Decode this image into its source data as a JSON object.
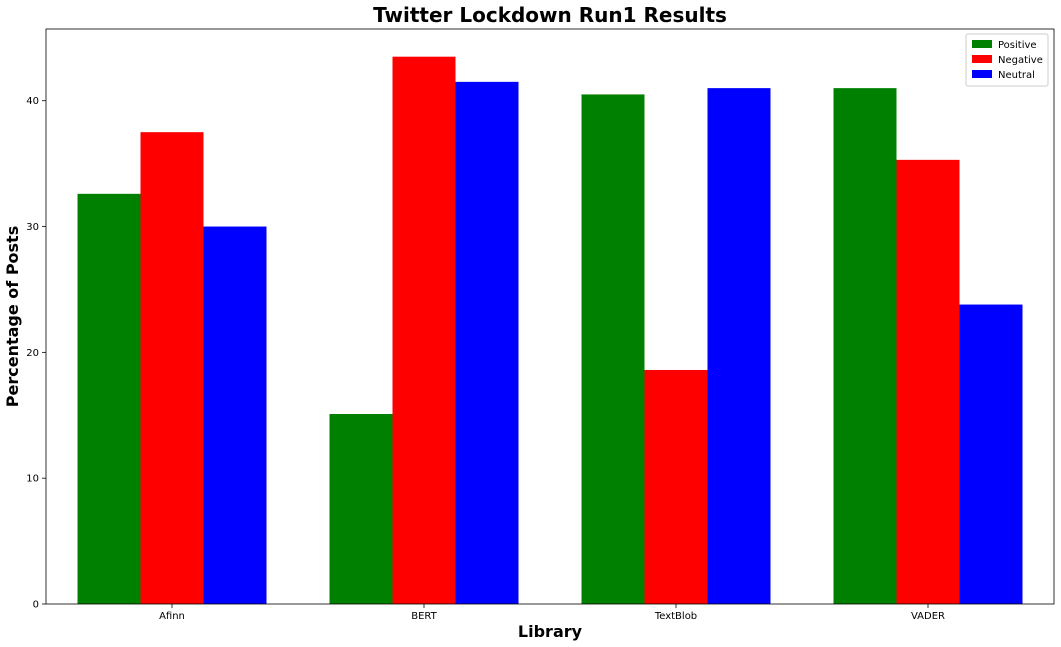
{
  "chart_data": {
    "type": "bar",
    "title": "Twitter Lockdown Run1 Results",
    "xlabel": "Library",
    "ylabel": "Percentage of Posts",
    "categories": [
      "Afinn",
      "BERT",
      "TextBlob",
      "VADER"
    ],
    "series": [
      {
        "name": "Positive",
        "color": "#008000",
        "values": [
          32.6,
          15.1,
          40.5,
          41.0
        ]
      },
      {
        "name": "Negative",
        "color": "#ff0000",
        "values": [
          37.5,
          43.5,
          18.6,
          35.3
        ]
      },
      {
        "name": "Neutral",
        "color": "#0000ff",
        "values": [
          30.0,
          41.5,
          41.0,
          23.8
        ]
      }
    ],
    "ylim": [
      0,
      45.7
    ],
    "yticks": [
      0,
      10,
      20,
      30,
      40
    ],
    "grid": false,
    "legend": "top-right"
  }
}
